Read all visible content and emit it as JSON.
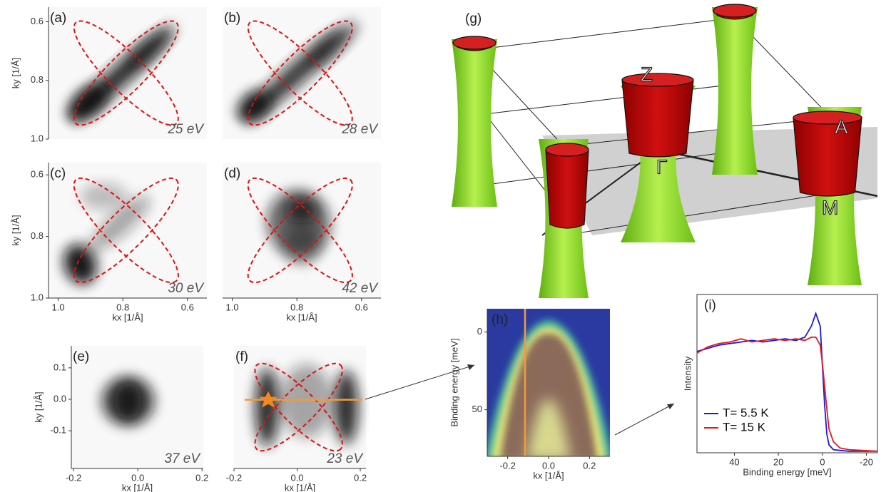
{
  "chart_data": [
    {
      "type": "image",
      "label": "(a)",
      "annotation": "25 eV",
      "ylabel": "ky [1/Å]",
      "ylim": [
        1.0,
        0.55
      ],
      "yticks": [
        0.6,
        0.8,
        {
          "value": 1,
          "label": "1.0"
        }
      ]
    },
    {
      "type": "image",
      "label": "(b)",
      "annotation": "28 eV"
    },
    {
      "type": "image",
      "label": "(c)",
      "annotation": "30 eV",
      "ylabel": "ky [1/Å]",
      "xlabel": "kx [1/Å]",
      "ylim": [
        1.0,
        0.56
      ],
      "yticks": [
        0.6,
        0.8,
        {
          "value": 1,
          "label": "1.0"
        }
      ],
      "xlim": [
        1.03,
        0.54
      ],
      "xticks": [
        {
          "value": 1,
          "label": "1.0"
        },
        0.8,
        0.6
      ]
    },
    {
      "type": "image",
      "label": "(d)",
      "annotation": "42 eV",
      "xlabel": "kx [1/Å]",
      "xlim": [
        1.03,
        0.54
      ],
      "xticks": [
        {
          "value": 1,
          "label": "1.0"
        },
        0.8,
        0.6
      ]
    },
    {
      "type": "image",
      "label": "(e)",
      "annotation": "37 eV",
      "ylabel": "ky [1/Å]",
      "xlabel": "kx [1/Å]",
      "ylim": [
        -0.22,
        0.17
      ],
      "yticks": [
        0.1,
        {
          "value": 0,
          "label": "0.0"
        },
        -0.1
      ],
      "xlim": [
        -0.207,
        0.204
      ],
      "xticks": [
        -0.2,
        {
          "value": 0,
          "label": "0.0"
        },
        0.2
      ]
    },
    {
      "type": "image",
      "label": "(f)",
      "annotation": "23 eV",
      "xlabel": "kx [1/Å]",
      "xlim": [
        -0.2,
        0.218
      ],
      "xticks": [
        -0.2,
        {
          "value": 0,
          "label": "0.0"
        },
        0.2
      ]
    },
    {
      "type": "image",
      "label": "(h)",
      "ylabel": "Binding energy [meV]",
      "xlabel": "kx [1/Å]",
      "xlim": [
        -0.3,
        0.3
      ],
      "xticks": [
        -0.2,
        {
          "value": 0,
          "label": "0.0"
        },
        0.2
      ],
      "ylim": [
        80,
        -15
      ],
      "yticks": [
        0,
        50
      ]
    },
    {
      "type": "line",
      "label": "(i)",
      "ylabel": "Intensity",
      "xlabel": "Binding energy [meV]",
      "xlim": [
        57,
        -25
      ],
      "xticks": [
        40,
        20,
        0,
        -20
      ],
      "ylim": [
        0,
        1
      ],
      "legend": "lower left",
      "x": [
        57,
        52,
        47,
        42,
        37,
        32,
        27,
        22,
        17,
        12,
        8,
        5,
        3,
        1,
        0,
        -1,
        -2,
        -3,
        -5,
        -8,
        -12,
        -18,
        -25
      ],
      "series": [
        {
          "name": "T= 5.5 K",
          "color": "#1a1adb",
          "values": [
            0.64,
            0.66,
            0.68,
            0.69,
            0.7,
            0.71,
            0.7,
            0.71,
            0.72,
            0.71,
            0.73,
            0.8,
            0.88,
            0.8,
            0.55,
            0.3,
            0.12,
            0.05,
            0.02,
            0.015,
            0.01,
            0.01,
            0.01
          ]
        },
        {
          "name": "T= 15 K",
          "color": "#e01b1b",
          "values": [
            0.63,
            0.67,
            0.69,
            0.7,
            0.72,
            0.7,
            0.71,
            0.72,
            0.71,
            0.72,
            0.71,
            0.73,
            0.73,
            0.68,
            0.56,
            0.42,
            0.28,
            0.15,
            0.07,
            0.03,
            0.02,
            0.015,
            0.01
          ]
        }
      ]
    }
  ],
  "diagram": {
    "label": "(g)",
    "points": [
      "Z",
      "Γ",
      "A",
      "M"
    ]
  }
}
